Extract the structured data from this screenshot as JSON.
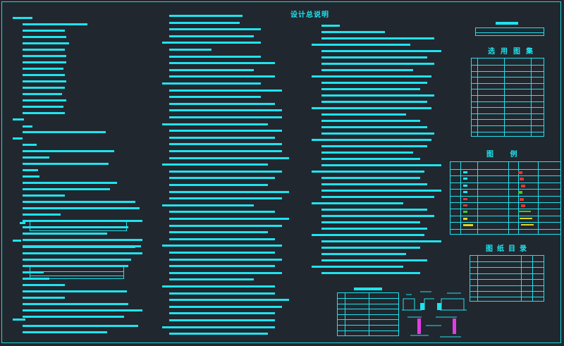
{
  "drawing": {
    "main_title": "设计总说明",
    "equipment_table_title": "选用图集",
    "legend_title": "图  例",
    "drawing_index_title": "图纸目录"
  },
  "colors": {
    "background": "#21272f",
    "line": "#1fe3ee",
    "red": "#e8322f",
    "green": "#2fd12f",
    "yellow": "#e6d21c",
    "magenta": "#e23ce6"
  }
}
